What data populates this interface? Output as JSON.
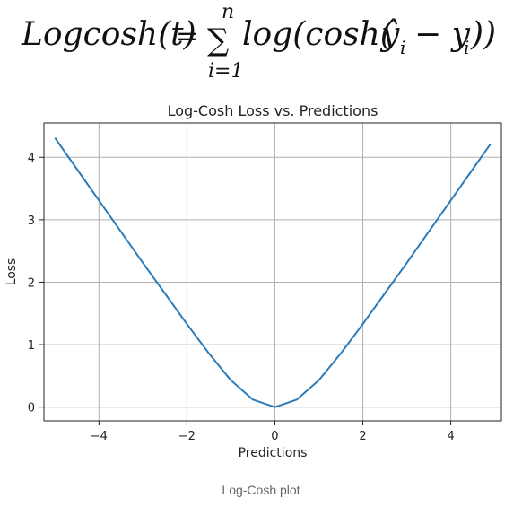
{
  "formula": {
    "lhs": "Logcosh(t)",
    "equals": "=",
    "sigma": "∑",
    "upper": "n",
    "lower": "i=1",
    "rhs_start": "log(cosh(",
    "yhat": "ŷ",
    "sub_i": "i",
    "minus": "− y",
    "rhs_end": "))"
  },
  "chart_data": {
    "type": "line",
    "title": "Log-Cosh Loss vs. Predictions",
    "xlabel": "Predictions",
    "ylabel": "Loss",
    "xlim": [
      -5.25,
      5.15
    ],
    "ylim": [
      -0.22,
      4.55
    ],
    "x_ticks": [
      -4,
      -2,
      0,
      2,
      4
    ],
    "x_tick_labels": [
      "−4",
      "−2",
      "0",
      "2",
      "4"
    ],
    "y_ticks": [
      0,
      1,
      2,
      3,
      4
    ],
    "y_tick_labels": [
      "0",
      "1",
      "2",
      "3",
      "4"
    ],
    "grid": true,
    "series": [
      {
        "color": "#2b7bb9",
        "x": [
          -5.0,
          -4.5,
          -4.0,
          -3.5,
          -3.0,
          -2.5,
          -2.0,
          -1.5,
          -1.0,
          -0.5,
          0.0,
          0.5,
          1.0,
          1.5,
          2.0,
          2.5,
          3.0,
          3.5,
          4.0,
          4.5,
          4.9
        ],
        "y": [
          4.31,
          3.81,
          3.31,
          2.81,
          2.31,
          1.82,
          1.33,
          0.86,
          0.43,
          0.12,
          0.0,
          0.12,
          0.43,
          0.86,
          1.33,
          1.82,
          2.31,
          2.81,
          3.31,
          3.81,
          4.21
        ]
      }
    ]
  },
  "caption": "Log-Cosh plot"
}
